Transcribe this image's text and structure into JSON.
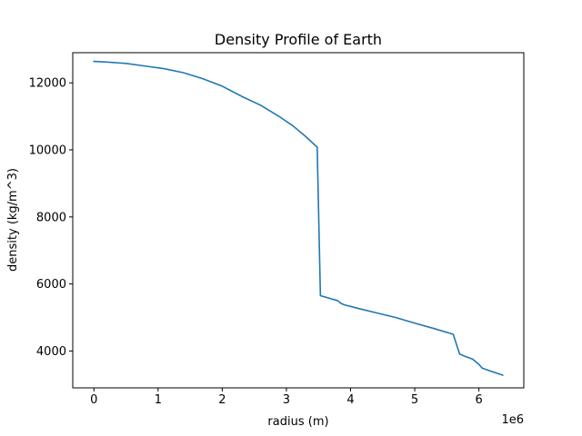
{
  "chart_data": {
    "type": "line",
    "title": "Density Profile of Earth",
    "xlabel": "radius (m)",
    "ylabel": "density (kg/m^3)",
    "x_offset_label": "1e6",
    "xlim": [
      -330000,
      6700000
    ],
    "ylim": [
      2900,
      12900
    ],
    "x_scale": 1000000,
    "x_ticks": [
      0,
      1000000,
      2000000,
      3000000,
      4000000,
      5000000,
      6000000
    ],
    "x_tick_labels": [
      "0",
      "1",
      "2",
      "3",
      "4",
      "5",
      "6"
    ],
    "y_ticks": [
      4000,
      6000,
      8000,
      10000,
      12000
    ],
    "y_tick_labels": [
      "4000",
      "6000",
      "8000",
      "10000",
      "12000"
    ],
    "grid": false,
    "legend": "none",
    "colors": {
      "line": "#1f77b4",
      "axes": "#000000",
      "background": "#ffffff"
    },
    "series": [
      {
        "x": [
          0,
          200000,
          500000,
          800000,
          1100000,
          1400000,
          1700000,
          2000000,
          2300000,
          2600000,
          2900000,
          3100000,
          3300000,
          3480000,
          3530000,
          3800000,
          3850000,
          3900000,
          4100000,
          4400000,
          4700000,
          5000000,
          5300000,
          5600000,
          5650000,
          5700000,
          5771000,
          5900000,
          6000000,
          6051000,
          6151000,
          6291000,
          6371000
        ],
        "y": [
          12640,
          12620,
          12580,
          12500,
          12420,
          12300,
          12120,
          11900,
          11600,
          11330,
          10980,
          10720,
          10400,
          10080,
          5650,
          5500,
          5420,
          5380,
          5280,
          5140,
          5000,
          4830,
          4670,
          4500,
          4200,
          3910,
          3850,
          3760,
          3600,
          3490,
          3420,
          3330,
          3280
        ]
      }
    ]
  }
}
